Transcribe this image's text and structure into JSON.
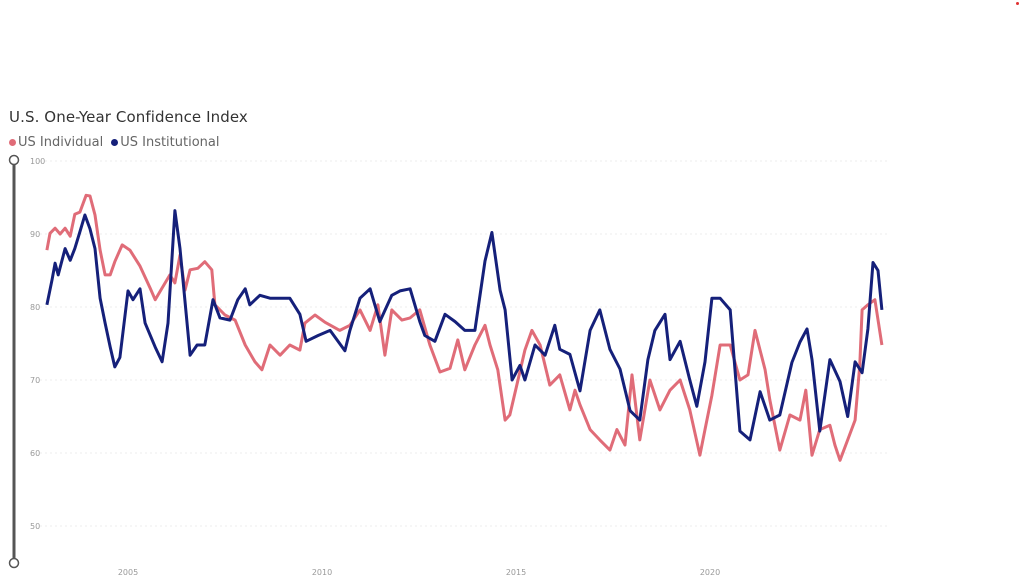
{
  "chart_data": {
    "type": "line",
    "title": "U.S. One-Year Confidence Index",
    "xlabel": "",
    "ylabel": "",
    "ylim": [
      50,
      100
    ],
    "xlim": [
      2002.9,
      2024.45
    ],
    "y_ticks": [
      100,
      90,
      80,
      70,
      60,
      50
    ],
    "x_ticks": [
      2005,
      2010,
      2015,
      2020
    ],
    "grid": true,
    "legend_position": "top-left",
    "series": [
      {
        "name": "US Individual",
        "color": "#e06c78",
        "x": [
          2002.91,
          2002.99,
          2003.12,
          2003.25,
          2003.38,
          2003.51,
          2003.63,
          2003.76,
          2003.92,
          2004.02,
          2004.15,
          2004.28,
          2004.41,
          2004.54,
          2004.66,
          2004.85,
          2005.05,
          2005.31,
          2005.57,
          2005.7,
          2005.88,
          2006.08,
          2006.21,
          2006.34,
          2006.47,
          2006.6,
          2006.8,
          2006.98,
          2007.16,
          2007.24,
          2007.5,
          2007.76,
          2008.02,
          2008.27,
          2008.45,
          2008.66,
          2008.92,
          2009.17,
          2009.43,
          2009.56,
          2009.82,
          2010.08,
          2010.46,
          2010.72,
          2010.98,
          2011.24,
          2011.44,
          2011.62,
          2011.8,
          2012.06,
          2012.27,
          2012.52,
          2012.78,
          2013.04,
          2013.3,
          2013.5,
          2013.68,
          2013.94,
          2014.2,
          2014.33,
          2014.53,
          2014.72,
          2014.84,
          2015.02,
          2015.23,
          2015.41,
          2015.62,
          2015.87,
          2016.13,
          2016.39,
          2016.52,
          2016.65,
          2016.91,
          2017.16,
          2017.42,
          2017.6,
          2017.81,
          2017.99,
          2018.19,
          2018.45,
          2018.71,
          2018.97,
          2019.23,
          2019.48,
          2019.74,
          2019.87,
          2020.05,
          2020.26,
          2020.52,
          2020.77,
          2020.98,
          2021.16,
          2021.42,
          2021.54,
          2021.8,
          2022.06,
          2022.32,
          2022.47,
          2022.63,
          2022.83,
          2023.09,
          2023.22,
          2023.35,
          2023.55,
          2023.74,
          2023.86,
          2023.92,
          2024.07,
          2024.25,
          2024.43
        ],
        "values": [
          87.8,
          90.1,
          90.8,
          90,
          90.8,
          89.7,
          92.7,
          93,
          95.3,
          95.2,
          92.6,
          87.8,
          84.4,
          84.4,
          86.2,
          88.5,
          87.8,
          85.6,
          82.6,
          81,
          82.6,
          84.4,
          83.3,
          87.1,
          82.3,
          85.1,
          85.3,
          86.2,
          85.1,
          80.3,
          78.9,
          78.2,
          74.8,
          72.5,
          71.4,
          74.8,
          73.4,
          74.8,
          74.1,
          77.8,
          78.9,
          77.9,
          76.8,
          77.5,
          79.6,
          76.8,
          80.3,
          73.4,
          79.6,
          78.2,
          78.5,
          79.6,
          74.8,
          71.1,
          71.6,
          75.5,
          71.4,
          74.8,
          77.5,
          74.8,
          71.4,
          64.5,
          65.2,
          69.3,
          74.1,
          76.8,
          74.8,
          69.3,
          70.7,
          65.9,
          68.6,
          66.6,
          63.2,
          61.8,
          60.4,
          63.2,
          61.1,
          70.7,
          61.8,
          70,
          65.9,
          68.6,
          70,
          65.9,
          59.7,
          63.2,
          67.9,
          74.8,
          74.8,
          70,
          70.7,
          76.8,
          71.4,
          67.3,
          60.4,
          65.2,
          64.5,
          68.6,
          59.7,
          63.2,
          63.8,
          61.1,
          59,
          61.8,
          64.5,
          72.1,
          79.6,
          80.3,
          81,
          74.8
        ]
      },
      {
        "name": "US Institutional",
        "color": "#15207a",
        "x": [
          2002.91,
          2003.04,
          2003.12,
          2003.2,
          2003.38,
          2003.51,
          2003.63,
          2003.76,
          2003.89,
          2004.02,
          2004.15,
          2004.28,
          2004.41,
          2004.54,
          2004.66,
          2004.79,
          2005.0,
          2005.13,
          2005.31,
          2005.44,
          2005.7,
          2005.88,
          2006.03,
          2006.21,
          2006.34,
          2006.6,
          2006.78,
          2006.98,
          2007.19,
          2007.37,
          2007.63,
          2007.83,
          2008.02,
          2008.14,
          2008.4,
          2008.66,
          2009.17,
          2009.43,
          2009.59,
          2009.9,
          2010.21,
          2010.59,
          2010.72,
          2010.98,
          2011.24,
          2011.49,
          2011.8,
          2012.01,
          2012.27,
          2012.52,
          2012.65,
          2012.91,
          2013.17,
          2013.43,
          2013.68,
          2013.94,
          2014.2,
          2014.38,
          2014.59,
          2014.72,
          2014.9,
          2015.1,
          2015.23,
          2015.49,
          2015.75,
          2016.0,
          2016.13,
          2016.39,
          2016.65,
          2016.91,
          2017.16,
          2017.42,
          2017.68,
          2017.94,
          2018.19,
          2018.4,
          2018.58,
          2018.84,
          2018.97,
          2019.23,
          2019.48,
          2019.66,
          2019.87,
          2020.05,
          2020.26,
          2020.52,
          2020.77,
          2021.03,
          2021.29,
          2021.54,
          2021.8,
          2022.11,
          2022.32,
          2022.5,
          2022.63,
          2022.83,
          2023.09,
          2023.35,
          2023.55,
          2023.74,
          2023.92,
          2024.07,
          2024.2,
          2024.33,
          2024.43
        ],
        "values": [
          80.3,
          83.7,
          86,
          84.4,
          88,
          86.4,
          88,
          90.3,
          92.6,
          90.7,
          88,
          81.2,
          77.8,
          74.5,
          71.8,
          73.1,
          82.2,
          81,
          82.5,
          77.8,
          74.5,
          72.5,
          77.8,
          93.2,
          88,
          73.4,
          74.8,
          74.8,
          81,
          78.5,
          78.2,
          81,
          82.5,
          80.3,
          81.6,
          81.2,
          81.2,
          79,
          75.3,
          76.1,
          76.8,
          74,
          76.8,
          81.2,
          82.5,
          78,
          81.6,
          82.2,
          82.5,
          78,
          76.1,
          75.3,
          79,
          78,
          76.8,
          76.8,
          86.3,
          90.2,
          82.3,
          79.6,
          70,
          72,
          70,
          74.8,
          73.4,
          77.5,
          74.2,
          73.5,
          68.5,
          76.8,
          79.6,
          74.2,
          71.5,
          65.8,
          64.5,
          72.8,
          76.8,
          79,
          72.8,
          75.3,
          70,
          66.4,
          72.5,
          81.2,
          81.2,
          79.6,
          63,
          61.8,
          68.4,
          64.5,
          65.2,
          72.4,
          75.2,
          77,
          72.8,
          63,
          72.8,
          69.8,
          65,
          72.5,
          71,
          77,
          86.1,
          85,
          79.6
        ]
      }
    ]
  }
}
